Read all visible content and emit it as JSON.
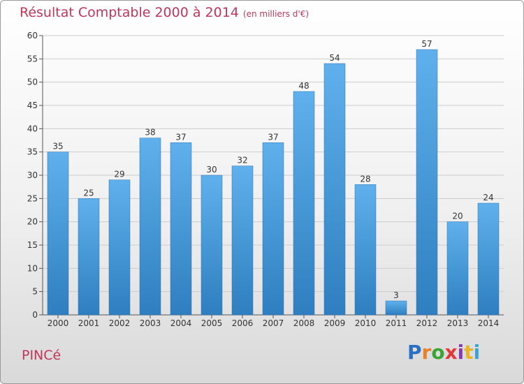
{
  "title": "Résultat Comptable 2000 à 2014",
  "subtitle": "(en milliers d'€)",
  "commune": "PINCé",
  "logo": {
    "letters": [
      "P",
      "r",
      "o",
      "x",
      "i",
      "t",
      "i"
    ],
    "colors": [
      "#2a6fc4",
      "#e8812a",
      "#3aa535",
      "#e23a3a",
      "#8a3ab0",
      "#e8b52a",
      "#3aa5d5"
    ]
  },
  "colors": {
    "bar_light": "#5fb0ec",
    "bar_dark": "#2f7fc0",
    "text_accent": "#c0365a",
    "grid": "#cccccc"
  },
  "chart_data": {
    "type": "bar",
    "categories": [
      "2000",
      "2001",
      "2002",
      "2003",
      "2004",
      "2005",
      "2006",
      "2007",
      "2008",
      "2009",
      "2010",
      "2011",
      "2012",
      "2013",
      "2014"
    ],
    "values": [
      35,
      25,
      29,
      38,
      37,
      30,
      32,
      37,
      48,
      54,
      28,
      3,
      57,
      20,
      24
    ],
    "value_labels": [
      "35",
      "25",
      "29",
      "38",
      "37",
      "30",
      "32",
      "37",
      "48",
      "54",
      "28",
      "3",
      "57",
      "20",
      "24"
    ],
    "y_ticks": [
      "0",
      "5",
      "10",
      "15",
      "20",
      "25",
      "30",
      "35",
      "40",
      "45",
      "50",
      "55",
      "60"
    ],
    "ylim": [
      0,
      60
    ],
    "grid": true
  }
}
